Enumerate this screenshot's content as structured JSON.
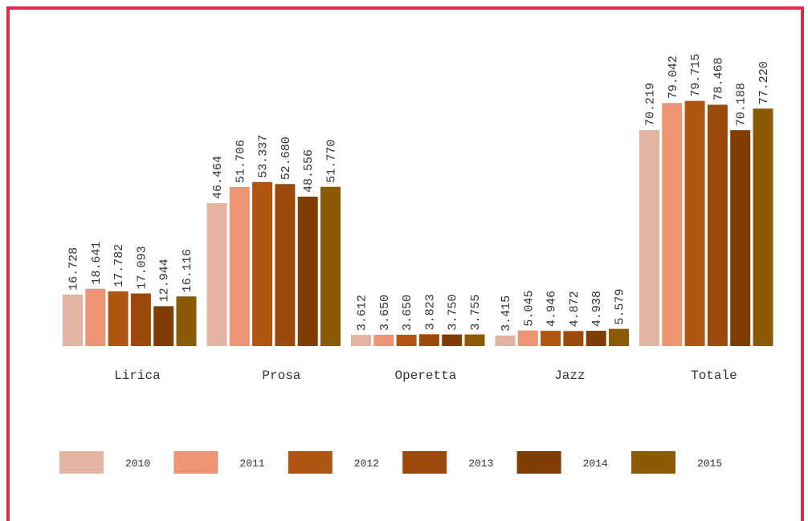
{
  "chart_data": {
    "type": "bar",
    "categories": [
      "Lirica",
      "Prosa",
      "Operetta",
      "Jazz",
      "Totale"
    ],
    "series": [
      {
        "name": "2010",
        "color": "#e2b3a0",
        "values": [
          16.728,
          46.464,
          3.612,
          3.415,
          70.219
        ],
        "value_labels": [
          "16.728",
          "46.464",
          "3.612",
          "3.415",
          "70.219"
        ]
      },
      {
        "name": "2011",
        "color": "#ec9474",
        "values": [
          18.641,
          51.706,
          3.65,
          5.045,
          79.042
        ],
        "value_labels": [
          "18.641",
          "51.706",
          "3.650",
          "5.045",
          "79.042"
        ]
      },
      {
        "name": "2012",
        "color": "#b05613",
        "values": [
          17.782,
          53.337,
          3.65,
          4.946,
          79.715
        ],
        "value_labels": [
          "17.782",
          "53.337",
          "3.650",
          "4.946",
          "79.715"
        ]
      },
      {
        "name": "2013",
        "color": "#9c4a0c",
        "values": [
          17.093,
          52.68,
          3.823,
          4.872,
          78.468
        ],
        "value_labels": [
          "17.093",
          "52.680",
          "3.823",
          "4.872",
          "78.468"
        ]
      },
      {
        "name": "2014",
        "color": "#7f3d03",
        "values": [
          12.944,
          48.556,
          3.75,
          4.938,
          70.188
        ],
        "value_labels": [
          "12.944",
          "48.556",
          "3.750",
          "4.938",
          "70.188"
        ]
      },
      {
        "name": "2015",
        "color": "#8b5a04",
        "values": [
          16.116,
          51.77,
          3.755,
          5.579,
          77.22
        ],
        "value_labels": [
          "16.116",
          "51.770",
          "3.755",
          "5.579",
          "77.220"
        ]
      }
    ],
    "legend": "bottom"
  }
}
